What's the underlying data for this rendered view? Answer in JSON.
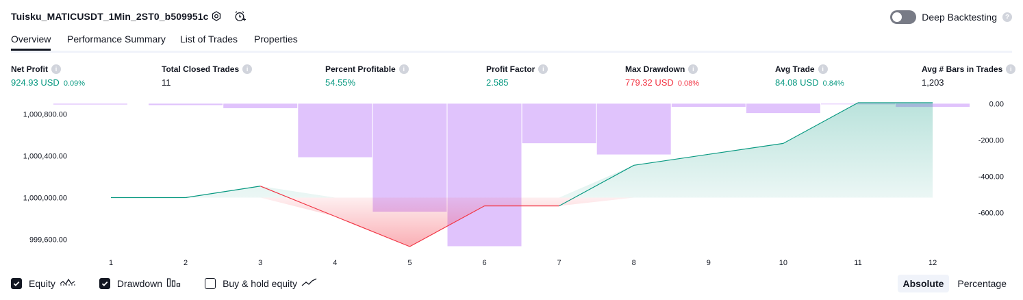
{
  "header": {
    "title": "Tuisku_MATICUSDT_1Min_2ST0_b509951c",
    "deep_backtesting_label": "Deep Backtesting",
    "deep_backtesting_enabled": false
  },
  "tabs": [
    {
      "label": "Overview",
      "active": true
    },
    {
      "label": "Performance Summary",
      "active": false
    },
    {
      "label": "List of Trades",
      "active": false
    },
    {
      "label": "Properties",
      "active": false
    }
  ],
  "stats": [
    {
      "label": "Net Profit",
      "value": "924.93 USD",
      "pct": "0.09%",
      "color": "green"
    },
    {
      "label": "Total Closed Trades",
      "value": "11",
      "pct": "",
      "color": "neutral"
    },
    {
      "label": "Percent Profitable",
      "value": "54.55%",
      "pct": "",
      "color": "green"
    },
    {
      "label": "Profit Factor",
      "value": "2.585",
      "pct": "",
      "color": "green"
    },
    {
      "label": "Max Drawdown",
      "value": "779.32 USD",
      "pct": "0.08%",
      "color": "red"
    },
    {
      "label": "Avg Trade",
      "value": "84.08 USD",
      "pct": "0.84%",
      "color": "green"
    },
    {
      "label": "Avg # Bars in Trades",
      "value": "1,203",
      "pct": "",
      "color": "neutral"
    }
  ],
  "colors": {
    "green": "#089981",
    "red": "#f23645",
    "drawdown_bar": "#e0c3fc",
    "equity_fill": "#d3eee8",
    "loss_fill": "#fbc4c8"
  },
  "chart_data": {
    "type": "line",
    "x": [
      1,
      2,
      3,
      4,
      5,
      6,
      7,
      8,
      9,
      10,
      11,
      12
    ],
    "left_axis": {
      "ticks": [
        "1,000,800.00",
        "1,000,400.00",
        "1,000,000.00",
        "999,600.00"
      ],
      "tick_values": [
        1000800,
        1000400,
        1000000,
        999600
      ],
      "range": [
        999530,
        1000910
      ]
    },
    "right_axis": {
      "ticks": [
        "0.00",
        "-200.00",
        "-400.00",
        "-600.00"
      ],
      "tick_values": [
        0,
        -200,
        -400,
        -600
      ],
      "range": [
        -787,
        5
      ]
    },
    "series": [
      {
        "name": "Equity",
        "values": [
          1000000,
          1000000,
          1000110,
          null,
          999530,
          999920,
          999920,
          1000310,
          null,
          1000520,
          1000910,
          1000910
        ]
      },
      {
        "name": "Drawdown",
        "values": [
          -5,
          -8,
          -25,
          -295,
          -595,
          -785,
          -218,
          -280,
          -18,
          -52,
          0,
          -18
        ]
      }
    ],
    "legend": [
      {
        "name": "Equity",
        "checked": true,
        "icon": "equity-wave-icon"
      },
      {
        "name": "Drawdown",
        "checked": true,
        "icon": "drawdown-bars-icon"
      },
      {
        "name": "Buy & hold equity",
        "checked": false,
        "icon": "buy-hold-line-icon"
      }
    ]
  },
  "mode_buttons": [
    {
      "label": "Absolute",
      "active": true
    },
    {
      "label": "Percentage",
      "active": false
    }
  ]
}
